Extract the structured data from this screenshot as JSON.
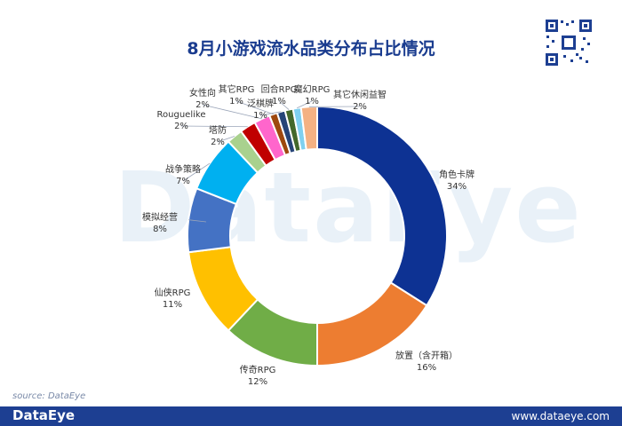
{
  "title": "8月小游戏流水品类分布占比情况",
  "watermark": "DataEye",
  "source": "source: DataEye",
  "footer": {
    "logo": "DataEye",
    "url": "www.dataeye.com"
  },
  "chart_data": {
    "type": "pie",
    "donut": true,
    "title": "8月小游戏流水品类分布占比情况",
    "slices": [
      {
        "label": "角色卡牌",
        "value": 34,
        "display": "34%",
        "color": "#0d3293"
      },
      {
        "label": "放置（含开箱）",
        "value": 16,
        "display": "16%",
        "color": "#ed7d31"
      },
      {
        "label": "传奇RPG",
        "value": 12,
        "display": "12%",
        "color": "#70ad47"
      },
      {
        "label": "仙侠RPG",
        "value": 11,
        "display": "11%",
        "color": "#ffc000"
      },
      {
        "label": "模拟经营",
        "value": 8,
        "display": "8%",
        "color": "#4472c4"
      },
      {
        "label": "战争策略",
        "value": 7,
        "display": "7%",
        "color": "#00b0f0"
      },
      {
        "label": "塔防",
        "value": 2,
        "display": "2%",
        "color": "#a9d18e"
      },
      {
        "label": "Rouguelike",
        "value": 2,
        "display": "2%",
        "color": "#c00000"
      },
      {
        "label": "女性向",
        "value": 2,
        "display": "2%",
        "color": "#ff66cc"
      },
      {
        "label": "其它RPG",
        "value": 1,
        "display": "1%",
        "color": "#9e480e"
      },
      {
        "label": "泛棋牌",
        "value": 1,
        "display": "1%",
        "color": "#264478"
      },
      {
        "label": "回合RPG",
        "value": 1,
        "display": "1%",
        "color": "#43682b"
      },
      {
        "label": "魔幻RPG",
        "value": 1,
        "display": "1%",
        "color": "#7fd0f0"
      },
      {
        "label": "其它休闲益智",
        "value": 2,
        "display": "2%",
        "color": "#f4b183"
      }
    ]
  }
}
